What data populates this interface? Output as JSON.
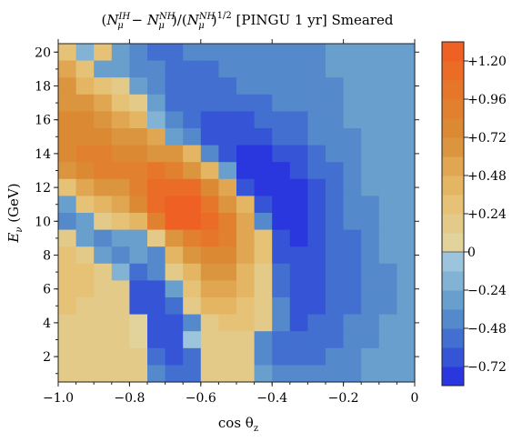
{
  "chart_data": {
    "type": "heatmap",
    "title": {
      "open": "(",
      "n1": "N",
      "n1_sub": "μ",
      "n1_sup": "IH",
      "minus": " − ",
      "n2": "N",
      "n2_sub": "μ",
      "n2_sup": "NH",
      "mid": ")/(",
      "n3": "N",
      "n3_sub": "μ",
      "n3_sup": "NH",
      "close": ")",
      "exponent": "1/2",
      "suffix": " [PINGU 1 yr] Smeared"
    },
    "xlabel": {
      "main": "cos θ",
      "sub": "z"
    },
    "ylabel": {
      "main": "E",
      "sub": "ν",
      "unit": " (GeV)"
    },
    "xlim": [
      -1.0,
      0.0
    ],
    "ylim": [
      0.5,
      20.5
    ],
    "x_ticks": [
      -1.0,
      -0.8,
      -0.6,
      -0.4,
      -0.2,
      0.0
    ],
    "x_tick_labels": [
      "−1.0",
      "−0.8",
      "−0.6",
      "−0.4",
      "−0.2",
      "0"
    ],
    "y_ticks": [
      2,
      4,
      6,
      8,
      10,
      12,
      14,
      16,
      18,
      20
    ],
    "y_tick_labels": [
      "2",
      "4",
      "6",
      "8",
      "10",
      "12",
      "14",
      "16",
      "18",
      "20"
    ],
    "x_bins": 20,
    "y_bins": 20,
    "rows_from_top": [
      [
        0.3,
        -0.2,
        0.3,
        -0.3,
        -0.4,
        -0.5,
        -0.48,
        -0.46,
        -0.44,
        -0.42,
        -0.42,
        -0.4,
        -0.4,
        -0.38,
        -0.36,
        -0.34,
        -0.32,
        -0.3,
        -0.28,
        -0.26
      ],
      [
        0.5,
        0.3,
        -0.25,
        -0.3,
        -0.4,
        -0.45,
        -0.48,
        -0.5,
        -0.48,
        -0.46,
        -0.44,
        -0.42,
        -0.4,
        -0.38,
        -0.36,
        -0.34,
        -0.32,
        -0.3,
        -0.28,
        -0.26
      ],
      [
        0.6,
        0.4,
        0.3,
        0.2,
        -0.35,
        -0.45,
        -0.5,
        -0.52,
        -0.5,
        -0.48,
        -0.46,
        -0.44,
        -0.42,
        -0.4,
        -0.38,
        -0.36,
        -0.32,
        -0.3,
        -0.28,
        -0.26
      ],
      [
        0.7,
        0.6,
        0.5,
        0.3,
        0.2,
        -0.3,
        -0.5,
        -0.55,
        -0.58,
        -0.55,
        -0.52,
        -0.48,
        -0.46,
        -0.44,
        -0.42,
        -0.38,
        -0.34,
        -0.3,
        -0.28,
        -0.26
      ],
      [
        0.8,
        0.75,
        0.65,
        0.55,
        0.4,
        -0.2,
        -0.4,
        -0.55,
        -0.62,
        -0.66,
        -0.62,
        -0.56,
        -0.52,
        -0.48,
        -0.44,
        -0.4,
        -0.35,
        -0.31,
        -0.28,
        -0.26
      ],
      [
        0.8,
        0.8,
        0.75,
        0.7,
        0.6,
        0.5,
        -0.3,
        -0.45,
        -0.62,
        -0.68,
        -0.7,
        -0.64,
        -0.58,
        -0.52,
        -0.46,
        -0.4,
        -0.36,
        -0.32,
        -0.28,
        -0.26
      ],
      [
        0.8,
        0.85,
        0.85,
        0.8,
        0.75,
        0.7,
        0.6,
        0.4,
        -0.4,
        -0.66,
        -0.76,
        -0.78,
        -0.7,
        -0.62,
        -0.54,
        -0.46,
        -0.38,
        -0.32,
        -0.28,
        -0.26
      ],
      [
        0.6,
        0.75,
        0.9,
        0.95,
        0.95,
        1.0,
        0.9,
        0.7,
        0.4,
        -0.3,
        -0.76,
        -0.8,
        -0.76,
        -0.68,
        -0.58,
        -0.5,
        -0.4,
        -0.33,
        -0.29,
        -0.26
      ],
      [
        0.3,
        0.5,
        0.6,
        0.7,
        0.9,
        1.1,
        1.15,
        1.1,
        0.8,
        0.5,
        -0.6,
        -0.78,
        -0.8,
        -0.72,
        -0.62,
        -0.52,
        -0.42,
        -0.34,
        -0.3,
        -0.27
      ],
      [
        -0.3,
        0.25,
        0.4,
        0.5,
        0.8,
        1.1,
        1.25,
        1.2,
        1.0,
        0.7,
        0.4,
        -0.7,
        -0.8,
        -0.75,
        -0.64,
        -0.54,
        -0.44,
        -0.36,
        -0.3,
        -0.27
      ],
      [
        -0.4,
        -0.3,
        0.2,
        0.3,
        0.4,
        0.9,
        1.2,
        1.2,
        1.1,
        0.9,
        0.5,
        -0.4,
        -0.75,
        -0.76,
        -0.66,
        -0.56,
        -0.46,
        -0.38,
        -0.31,
        -0.27
      ],
      [
        0.2,
        -0.3,
        -0.4,
        -0.35,
        -0.3,
        0.2,
        0.7,
        0.9,
        1.0,
        0.85,
        0.5,
        0.3,
        -0.7,
        -0.72,
        -0.66,
        -0.58,
        -0.48,
        -0.4,
        -0.32,
        -0.28
      ],
      [
        0.3,
        0.2,
        -0.3,
        -0.4,
        -0.3,
        -0.4,
        0.4,
        0.6,
        0.8,
        0.75,
        0.5,
        0.3,
        -0.6,
        -0.7,
        -0.66,
        -0.58,
        -0.5,
        -0.42,
        -0.34,
        -0.28
      ],
      [
        0.3,
        0.25,
        0.2,
        -0.2,
        -0.5,
        -0.45,
        0.2,
        0.4,
        0.6,
        0.6,
        0.4,
        0.2,
        -0.55,
        -0.68,
        -0.64,
        -0.58,
        -0.5,
        -0.44,
        -0.36,
        -0.29
      ],
      [
        0.3,
        0.25,
        0.2,
        0.2,
        -0.6,
        -0.65,
        -0.3,
        0.3,
        0.5,
        0.5,
        0.4,
        0.2,
        -0.5,
        -0.66,
        -0.62,
        -0.56,
        -0.5,
        -0.44,
        -0.36,
        -0.3
      ],
      [
        0.25,
        0.2,
        0.2,
        0.2,
        -0.6,
        -0.7,
        -0.5,
        0.2,
        0.4,
        0.4,
        0.3,
        0.2,
        -0.45,
        -0.64,
        -0.6,
        -0.54,
        -0.48,
        -0.42,
        -0.36,
        -0.3
      ],
      [
        0.2,
        0.2,
        0.2,
        0.2,
        0.1,
        -0.7,
        -0.65,
        -0.4,
        0.2,
        0.3,
        0.3,
        0.2,
        -0.4,
        -0.6,
        -0.58,
        -0.52,
        -0.46,
        -0.4,
        -0.34,
        -0.3
      ],
      [
        0.2,
        0.2,
        0.2,
        0.2,
        0.1,
        -0.6,
        -0.7,
        -0.1,
        0.2,
        0.2,
        0.2,
        -0.4,
        -0.55,
        -0.55,
        -0.52,
        -0.48,
        -0.42,
        -0.36,
        -0.32,
        -0.28
      ],
      [
        0.2,
        0.2,
        0.2,
        0.2,
        0.2,
        -0.5,
        -0.6,
        -0.5,
        0.2,
        0.2,
        0.2,
        -0.4,
        -0.5,
        -0.5,
        -0.48,
        -0.44,
        -0.4,
        -0.34,
        -0.3,
        -0.27
      ],
      [
        0.15,
        0.15,
        0.15,
        0.15,
        0.15,
        -0.4,
        -0.5,
        -0.5,
        0.15,
        0.15,
        0.15,
        -0.35,
        -0.45,
        -0.45,
        -0.44,
        -0.4,
        -0.36,
        -0.32,
        -0.29,
        -0.26
      ]
    ],
    "colorbar": {
      "ticks": [
        1.2,
        0.96,
        0.72,
        0.48,
        0.24,
        0,
        -0.24,
        -0.48,
        -0.72
      ],
      "tick_labels": [
        "+1.20",
        "+0.96",
        "+0.72",
        "+0.48",
        "+0.24",
        "0",
        "−0.24",
        "−0.48",
        "−0.72"
      ],
      "range": [
        -0.84,
        1.32
      ],
      "bin_step": 0.12,
      "stops": [
        {
          "value": -0.84,
          "color": "#2528e2"
        },
        {
          "value": -0.6,
          "color": "#3b63d2"
        },
        {
          "value": -0.36,
          "color": "#5c96c8"
        },
        {
          "value": -0.12,
          "color": "#8fbbd8"
        },
        {
          "value": 0.0,
          "color": "#a9cde0"
        },
        {
          "value": 0.0001,
          "color": "#e1d6a4"
        },
        {
          "value": 0.36,
          "color": "#e6be6c"
        },
        {
          "value": 0.72,
          "color": "#d98d35"
        },
        {
          "value": 1.08,
          "color": "#e97228"
        },
        {
          "value": 1.32,
          "color": "#ef5a22"
        }
      ]
    }
  }
}
